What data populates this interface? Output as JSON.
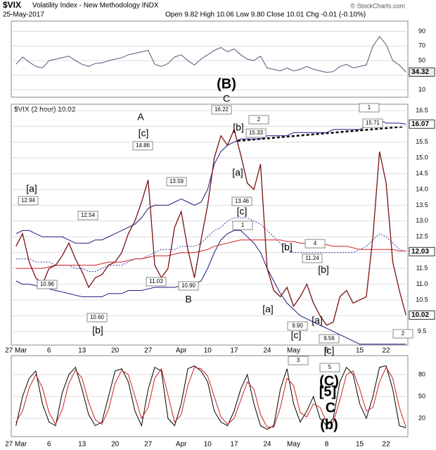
{
  "header": {
    "symbol": "$VIX",
    "name": "Volatility Index - New Methodology  INDX",
    "date": "25-May-2017",
    "ohlc": "Open 9.82  High 10.06  Low 9.80  Close 10.01  Chg -0.01 (-0.10%)",
    "credit": "© StockCharts.com"
  },
  "chart_data": [
    {
      "type": "line",
      "color": "#555577",
      "ylim": [
        0,
        104
      ],
      "yticks": [
        10,
        30,
        50,
        70,
        90
      ],
      "values": [
        45,
        55,
        48,
        42,
        40,
        50,
        52,
        54,
        56,
        50,
        45,
        42,
        46,
        47,
        50,
        52,
        54,
        58,
        60,
        62,
        64,
        45,
        42,
        46,
        55,
        58,
        50,
        44,
        52,
        58,
        64,
        68,
        62,
        66,
        58,
        52,
        50,
        56,
        40,
        38,
        36,
        40,
        36,
        38,
        42,
        38,
        36,
        34,
        35,
        42,
        45,
        40,
        42,
        44,
        70,
        83,
        72,
        50,
        44,
        34.32
      ]
    },
    {
      "type": "line",
      "label": "$VIX (2 hour) 10.02",
      "ylim": [
        9.07,
        16.7
      ],
      "yticks": [
        9.5,
        {
          "value": 10,
          "label": "10.0"
        },
        10.5,
        {
          "value": 11,
          "label": "11.0"
        },
        11.5,
        {
          "value": 12,
          "label": "12.0"
        },
        12.5,
        {
          "value": 13,
          "label": "13.0"
        },
        13.5,
        {
          "value": 14,
          "label": "14.0"
        },
        14.5,
        {
          "value": 15,
          "label": "15.0"
        },
        15.5,
        {
          "value": 16,
          "label": "16.0"
        },
        16.5
      ],
      "categories": [
        "27 Mar",
        null,
        null,
        null,
        null,
        "6",
        null,
        null,
        null,
        null,
        "13",
        null,
        null,
        null,
        null,
        "20",
        null,
        null,
        null,
        null,
        "27",
        null,
        null,
        null,
        null,
        "Apr",
        null,
        null,
        null,
        "10",
        null,
        null,
        null,
        "17",
        null,
        null,
        null,
        null,
        "24",
        null,
        null,
        null,
        "May",
        null,
        null,
        null,
        null,
        "8",
        null,
        null,
        null,
        null,
        "15",
        null,
        null,
        null,
        "22",
        null,
        null,
        null
      ],
      "series": [
        {
          "color": "#1a1a80",
          "values": [
            12.6,
            12.7,
            12.7,
            12.6,
            12.5,
            12.5,
            12.5,
            12.5,
            12.4,
            12.3,
            12.3,
            12.3,
            12.4,
            12.4,
            12.5,
            12.6,
            12.7,
            12.8,
            12.9,
            13.1,
            13.4,
            13.5,
            13.5,
            13.5,
            13.6,
            13.7,
            13.6,
            13.5,
            13.6,
            14.0,
            14.8,
            15.2,
            15.4,
            15.5,
            15.6,
            15.6,
            15.6,
            15.6,
            15.7,
            15.7,
            15.7,
            15.7,
            15.8,
            15.8,
            15.8,
            15.8,
            15.8,
            15.8,
            15.9,
            15.9,
            15.9,
            15.9,
            15.9,
            16.0,
            16.2,
            16.2,
            16.1,
            16.1,
            16.1,
            16.07
          ]
        },
        {
          "color": "#1a1a80",
          "values": [
            11.1,
            11.0,
            11.0,
            10.95,
            10.9,
            10.85,
            10.8,
            10.75,
            10.7,
            10.65,
            10.6,
            10.6,
            10.6,
            10.6,
            10.7,
            10.7,
            10.7,
            10.8,
            10.8,
            10.8,
            10.85,
            10.9,
            10.9,
            10.9,
            10.9,
            10.95,
            11.0,
            11.0,
            11.1,
            11.5,
            12.0,
            12.4,
            12.6,
            12.7,
            12.7,
            12.5,
            12.3,
            12.0,
            11.5,
            11.1,
            10.7,
            10.4,
            10.2,
            10.0,
            9.9,
            9.8,
            9.7,
            9.6,
            9.5,
            9.4,
            9.3,
            9.2,
            9.1,
            9.1,
            9.1,
            9.1,
            9.1,
            9.1,
            9.1,
            9.1
          ]
        },
        {
          "color": "#3333aa",
          "dashed": true,
          "values": [
            11.8,
            11.8,
            11.8,
            11.7,
            11.7,
            11.7,
            11.6,
            11.6,
            11.6,
            11.5,
            11.5,
            11.4,
            11.4,
            11.5,
            11.6,
            11.6,
            11.6,
            11.7,
            11.8,
            11.8,
            11.9,
            12.0,
            12.1,
            12.1,
            12.1,
            12.2,
            12.2,
            12.2,
            12.3,
            12.5,
            12.7,
            12.8,
            13.0,
            13.1,
            13.1,
            13.1,
            13.0,
            12.9,
            12.7,
            12.5,
            12.3,
            12.1,
            12.0,
            12.0,
            12.0,
            12.0,
            12.0,
            12.0,
            12.0,
            12.0,
            12.0,
            12.0,
            12.1,
            12.2,
            12.4,
            12.6,
            12.5,
            12.3,
            12.1,
            12.03
          ]
        },
        {
          "color": "#d02020",
          "values": [
            11.5,
            11.5,
            11.5,
            11.5,
            11.5,
            11.55,
            11.6,
            11.6,
            11.6,
            11.6,
            11.6,
            11.6,
            11.6,
            11.65,
            11.7,
            11.7,
            11.7,
            11.75,
            11.8,
            11.8,
            11.85,
            11.9,
            11.9,
            11.9,
            11.95,
            12.0,
            12.0,
            12.0,
            12.05,
            12.1,
            12.2,
            12.25,
            12.3,
            12.35,
            12.4,
            12.4,
            12.4,
            12.4,
            12.4,
            12.4,
            12.4,
            12.35,
            12.35,
            12.3,
            12.3,
            12.3,
            12.3,
            12.25,
            12.2,
            12.2,
            12.2,
            12.15,
            12.1,
            12.1,
            12.1,
            12.1,
            12.1,
            12.1,
            12.05,
            12.05
          ]
        },
        {
          "color": "#7a1010",
          "values": [
            12.2,
            12.6,
            11.7,
            11.2,
            11.0,
            11.5,
            11.6,
            11.9,
            12.3,
            11.8,
            11.4,
            10.9,
            11.2,
            11.3,
            11.6,
            11.7,
            12.0,
            12.6,
            13.0,
            13.6,
            14.3,
            11.6,
            11.2,
            11.5,
            12.8,
            13.3,
            12.1,
            11.2,
            12.4,
            13.5,
            15.0,
            15.7,
            15.4,
            15.9,
            15.1,
            14.2,
            14.0,
            14.8,
            11.5,
            10.8,
            10.6,
            10.9,
            10.3,
            10.6,
            11.0,
            10.4,
            10.0,
            9.7,
            9.8,
            10.6,
            10.8,
            10.4,
            10.5,
            10.6,
            12.5,
            15.2,
            14.2,
            11.7,
            10.8,
            10.02
          ]
        }
      ],
      "annotations": [
        {
          "text": "[a]",
          "color": "#a00000"
        },
        {
          "text": "12.94",
          "color": "#000000"
        },
        {
          "text": "[b]",
          "color": "#a00000"
        },
        {
          "text": "10.60",
          "color": "#000000"
        },
        {
          "text": "12.54",
          "color": "#000000"
        },
        {
          "text": "10.96",
          "color": "#000000"
        },
        {
          "text": "A",
          "color": "#8a2be2"
        },
        {
          "text": "[c]",
          "color": "#a00000"
        },
        {
          "text": "14.86",
          "color": "#000000"
        },
        {
          "text": "13.59",
          "color": "#000000"
        },
        {
          "text": "11.03",
          "color": "#000000"
        },
        {
          "text": "10.90",
          "color": "#000000"
        },
        {
          "text": "B",
          "color": "#8a2be2"
        },
        {
          "text": "(B)",
          "color": "#000000"
        },
        {
          "text": "C",
          "color": "#8a2be2"
        },
        {
          "text": "16.22",
          "color": "#000000"
        },
        {
          "text": "[b]",
          "color": "#a00000"
        },
        {
          "text": "15.33",
          "color": "#000000"
        },
        {
          "text": "2",
          "color": "#8a2be2"
        },
        {
          "text": "[a]",
          "color": "#a00000"
        },
        {
          "text": "13.46",
          "color": "#000000"
        },
        {
          "text": "[c]",
          "color": "#a00000"
        },
        {
          "text": "1",
          "color": "#8a2be2"
        },
        {
          "text": "[b]",
          "color": "#a00000"
        },
        {
          "text": "4",
          "color": "#8a2be2"
        },
        {
          "text": "11.24",
          "color": "#000000"
        },
        {
          "text": "[b]",
          "color": "#a00000"
        },
        {
          "text": "[a]",
          "color": "#a00000"
        },
        {
          "text": "9.90",
          "color": "#000000"
        },
        {
          "text": "[c]",
          "color": "#a00000"
        },
        {
          "text": "[a]",
          "color": "#a00000"
        },
        {
          "text": "9.56",
          "color": "#000000"
        },
        {
          "text": "[c]",
          "color": "#a00000"
        },
        {
          "text": "3",
          "color": "#8a2be2"
        },
        {
          "text": "5",
          "color": "#8a2be2"
        },
        {
          "text": "(C)",
          "color": "#000000"
        },
        {
          "text": "[5]",
          "color": "#0000dd"
        },
        {
          "text": "C",
          "color": "#e00000"
        },
        {
          "text": "(b)",
          "color": "#109010"
        },
        {
          "text": "1",
          "color": "#8a2be2"
        },
        {
          "text": "15.71",
          "color": "#000000"
        },
        {
          "text": "2",
          "color": "#8a2be2"
        }
      ]
    },
    {
      "type": "line",
      "ylim": [
        -5,
        106
      ],
      "yticks": [
        20,
        50,
        80
      ],
      "series": [
        {
          "color": "#000000",
          "values": [
            10,
            50,
            75,
            85,
            40,
            15,
            10,
            55,
            80,
            90,
            60,
            25,
            10,
            15,
            50,
            85,
            88,
            70,
            30,
            10,
            60,
            90,
            85,
            20,
            10,
            40,
            88,
            92,
            85,
            70,
            30,
            15,
            10,
            30,
            60,
            80,
            40,
            10,
            5,
            10,
            60,
            88,
            40,
            15,
            30,
            50,
            20,
            10,
            20,
            70,
            90,
            80,
            40,
            20,
            50,
            90,
            92,
            60,
            10,
            7.09
          ]
        },
        {
          "color": "#cc2020",
          "values": [
            15,
            30,
            62,
            80,
            62,
            28,
            12,
            32,
            68,
            86,
            75,
            42,
            18,
            12,
            32,
            68,
            86,
            80,
            50,
            20,
            35,
            75,
            88,
            52,
            15,
            25,
            65,
            90,
            88,
            78,
            50,
            22,
            12,
            20,
            45,
            70,
            60,
            25,
            8,
            8,
            35,
            75,
            65,
            28,
            22,
            40,
            35,
            15,
            15,
            45,
            80,
            85,
            60,
            30,
            35,
            70,
            90,
            75,
            35,
            8
          ]
        }
      ]
    }
  ]
}
